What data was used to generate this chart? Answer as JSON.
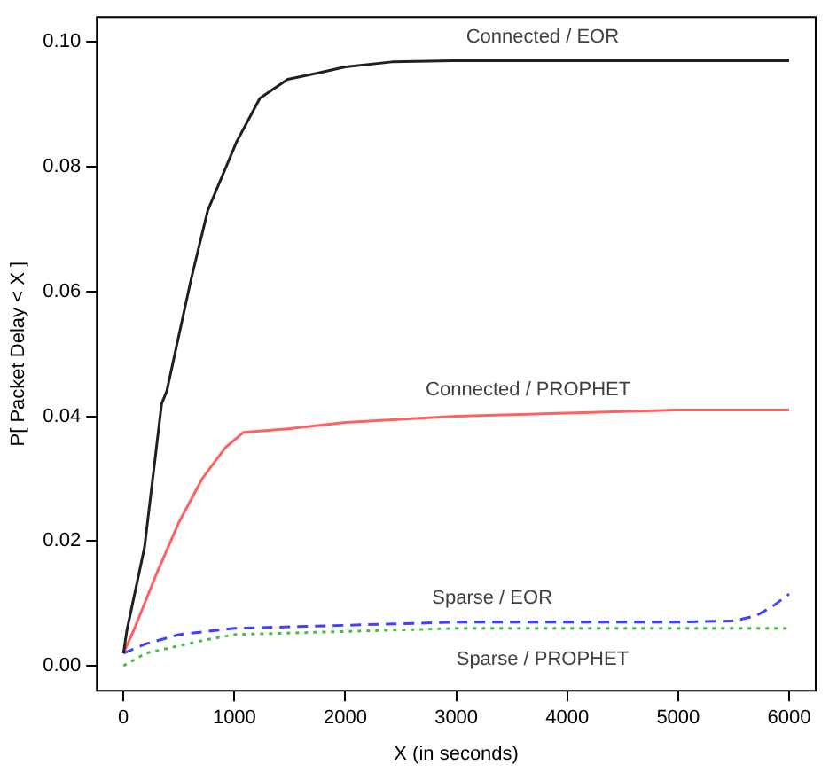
{
  "chart_data": {
    "type": "line",
    "xlabel": "X (in seconds)",
    "ylabel": "P[ Packet Delay < X ]",
    "xlim": [
      -240,
      6240
    ],
    "ylim": [
      -0.004,
      0.104
    ],
    "xticks": [
      0,
      1000,
      2000,
      3000,
      4000,
      5000,
      6000
    ],
    "yticks": [
      {
        "value": 0,
        "label": "0.00"
      },
      0.02,
      0.04,
      0.06,
      0.08,
      {
        "value": 0.1,
        "label": "0.10"
      }
    ],
    "grid": false,
    "legend": false,
    "marker": "none",
    "series": [
      {
        "name": "Connected / EOR",
        "color": "#202020",
        "line_style": "solid",
        "x": [
          0,
          30,
          190,
          344,
          390,
          610,
          760,
          1020,
          1230,
          1480,
          1750,
          2000,
          2420,
          3000,
          4000,
          5000,
          6000
        ],
        "values": [
          0.002,
          0.0056,
          0.019,
          0.042,
          0.044,
          0.062,
          0.073,
          0.084,
          0.091,
          0.094,
          0.095,
          0.096,
          0.0968,
          0.097,
          0.097,
          0.097,
          0.097
        ]
      },
      {
        "name": "Connected / PROPHET",
        "color": "#ff6060",
        "line_style": "solid",
        "x": [
          0,
          100,
          290,
          500,
          710,
          920,
          1080,
          1480,
          2000,
          3000,
          4000,
          5000,
          6000
        ],
        "values": [
          0.002,
          0.006,
          0.0144,
          0.023,
          0.03,
          0.035,
          0.0374,
          0.038,
          0.039,
          0.04,
          0.0405,
          0.041,
          0.041
        ]
      },
      {
        "name": "Sparse / EOR",
        "color": "#4040ff",
        "line_style": "dashed",
        "x": [
          0,
          200,
          500,
          1000,
          2000,
          3000,
          4000,
          5000,
          5500,
          5700,
          5850,
          6000
        ],
        "values": [
          0.002,
          0.0035,
          0.005,
          0.006,
          0.0065,
          0.007,
          0.007,
          0.007,
          0.0072,
          0.008,
          0.0095,
          0.0115
        ]
      },
      {
        "name": "Sparse / PROPHET",
        "color": "#40c040",
        "line_style": "dotted",
        "x": [
          0,
          200,
          700,
          1000,
          2000,
          3000,
          4000,
          5000,
          6000
        ],
        "values": [
          0,
          0.002,
          0.004,
          0.005,
          0.0055,
          0.006,
          0.006,
          0.006,
          0.006
        ]
      }
    ]
  }
}
